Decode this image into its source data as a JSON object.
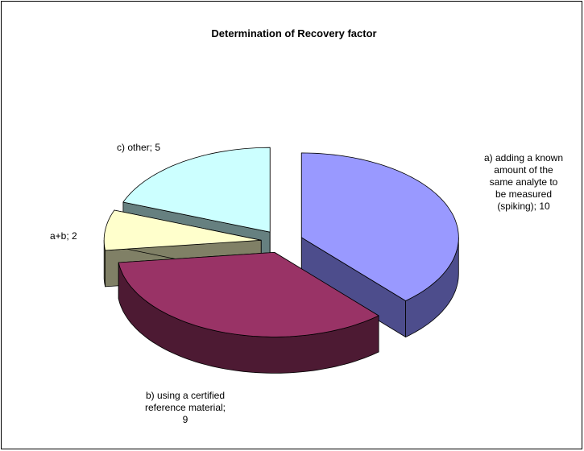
{
  "chart_data": {
    "type": "pie3d",
    "title": "Determination of Recovery factor",
    "values": [
      10,
      9,
      2,
      5
    ],
    "value_labels": [
      "a) adding a known amount of the same analyte to be measured (spiking); 10",
      "b) using a certified reference material; 9",
      "a+b; 2",
      "c) other; 5"
    ],
    "colors": [
      "#9999ff",
      "#993366",
      "#ffffcc",
      "#ccffff"
    ],
    "side_colors": [
      "#4d4d8c",
      "#4d1a33",
      "#808066",
      "#668080"
    ]
  }
}
